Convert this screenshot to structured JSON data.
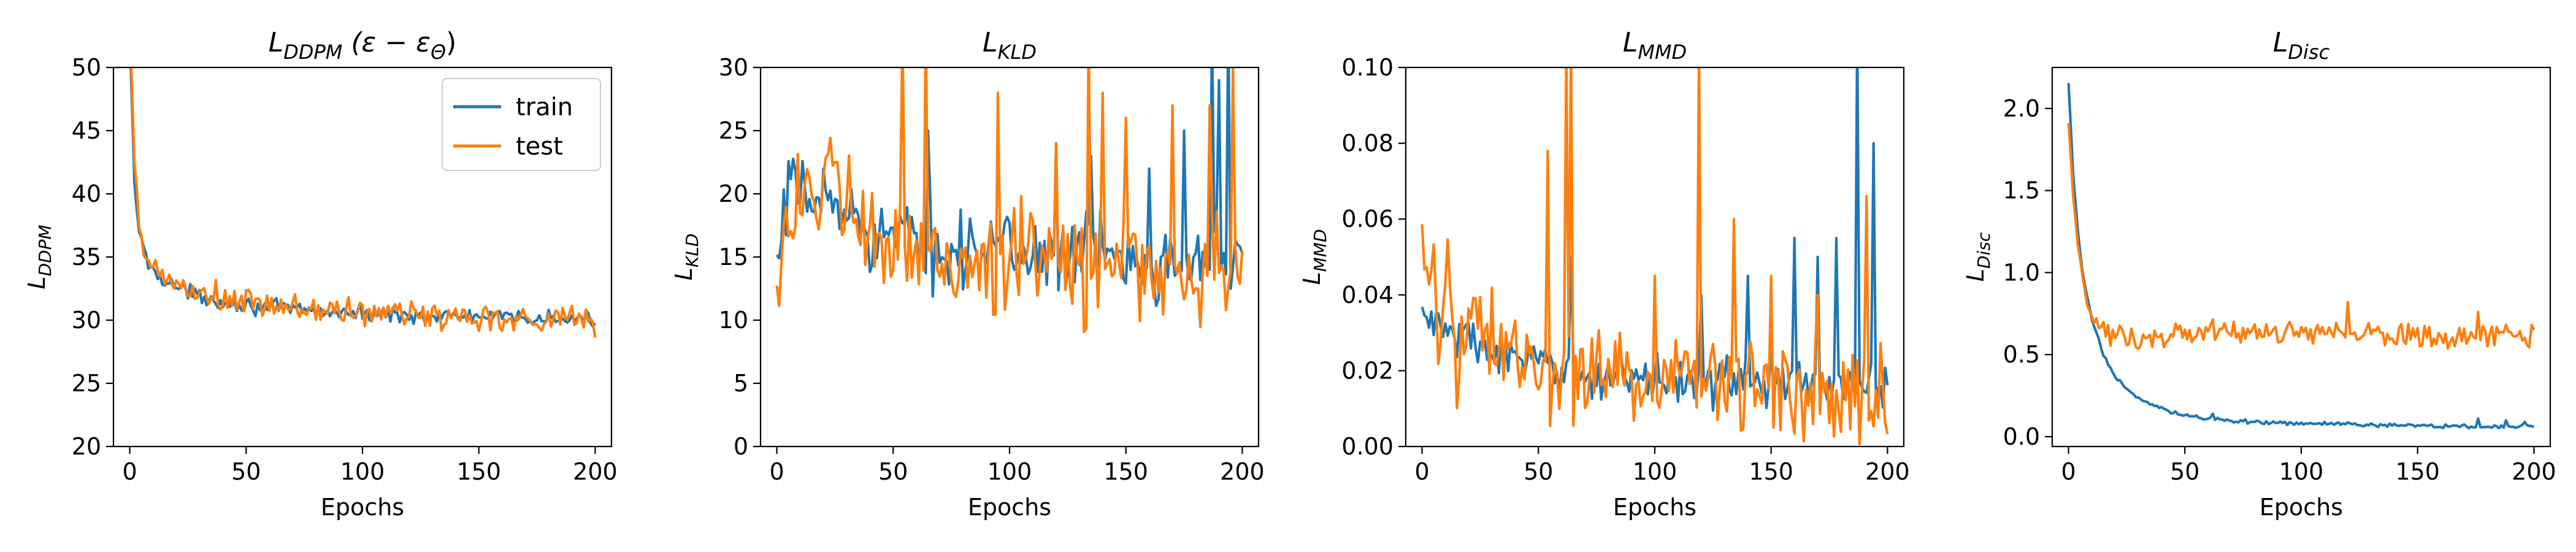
{
  "chart_data": [
    {
      "type": "line",
      "title": "L_DDPM (ε − ε_Θ)",
      "title_main": "L",
      "title_sub": "DDPM",
      "title_tail": " (ε − ε",
      "title_tail_sub": "Θ",
      "title_close": ")",
      "xlabel": "Epochs",
      "ylabel": "L",
      "ylabel_sub": "DDPM",
      "xlim": [
        -7,
        207
      ],
      "ylim": [
        20,
        50
      ],
      "xticks": [
        0,
        50,
        100,
        150,
        200
      ],
      "yticks": [
        20,
        25,
        30,
        35,
        40,
        45,
        50
      ],
      "legend": {
        "position": "top-right",
        "entries": [
          "train",
          "test"
        ]
      },
      "series": [
        {
          "name": "train",
          "color": "#1f77b4",
          "points": [
            [
              0,
              52
            ],
            [
              2,
              41
            ],
            [
              4,
              37
            ],
            [
              6,
              35.5
            ],
            [
              8,
              34.5
            ],
            [
              10,
              34
            ],
            [
              15,
              33.2
            ],
            [
              20,
              32.6
            ],
            [
              25,
              32.2
            ],
            [
              30,
              31.9
            ],
            [
              40,
              31.5
            ],
            [
              50,
              31.2
            ],
            [
              60,
              31
            ],
            [
              80,
              30.7
            ],
            [
              100,
              30.5
            ],
            [
              120,
              30.4
            ],
            [
              140,
              30.3
            ],
            [
              160,
              30.2
            ],
            [
              180,
              30.1
            ],
            [
              200,
              30
            ]
          ],
          "noise": 0.3
        },
        {
          "name": "test",
          "color": "#ff7f0e",
          "points": [
            [
              0,
              53
            ],
            [
              2,
              42
            ],
            [
              4,
              37.5
            ],
            [
              6,
              35.5
            ],
            [
              8,
              34.5
            ],
            [
              10,
              34
            ],
            [
              15,
              33.4
            ],
            [
              20,
              32.8
            ],
            [
              25,
              32.3
            ],
            [
              30,
              32
            ],
            [
              40,
              31.6
            ],
            [
              50,
              31.3
            ],
            [
              60,
              31.1
            ],
            [
              80,
              30.8
            ],
            [
              100,
              30.6
            ],
            [
              120,
              30.5
            ],
            [
              140,
              30.3
            ],
            [
              160,
              30.2
            ],
            [
              180,
              30.1
            ],
            [
              200,
              30.1
            ]
          ],
          "noise": 0.6
        }
      ]
    },
    {
      "type": "line",
      "title": "L_KLD",
      "title_main": "L",
      "title_sub": "KLD",
      "xlabel": "Epochs",
      "ylabel": "L",
      "ylabel_sub": "KLD",
      "xlim": [
        -7,
        207
      ],
      "ylim": [
        0,
        30
      ],
      "xticks": [
        0,
        50,
        100,
        150,
        200
      ],
      "yticks": [
        0,
        5,
        10,
        15,
        20,
        25,
        30
      ],
      "series": [
        {
          "name": "train",
          "color": "#1f77b4",
          "points": [
            [
              0,
              12.5
            ],
            [
              3,
              18.5
            ],
            [
              5,
              19.5
            ],
            [
              10,
              20
            ],
            [
              20,
              19.5
            ],
            [
              30,
              18.5
            ],
            [
              40,
              17.5
            ],
            [
              50,
              16.5
            ],
            [
              60,
              16
            ],
            [
              80,
              15.8
            ],
            [
              100,
              15.5
            ],
            [
              120,
              15.3
            ],
            [
              140,
              15.2
            ],
            [
              160,
              15
            ],
            [
              180,
              15
            ],
            [
              200,
              15
            ]
          ],
          "noise": 1.5,
          "spikes": [
            [
              65,
              25
            ],
            [
              120,
              24
            ],
            [
              135,
              23
            ],
            [
              160,
              22
            ],
            [
              175,
              25
            ],
            [
              187,
              33
            ],
            [
              190,
              29
            ],
            [
              194,
              34
            ]
          ]
        },
        {
          "name": "test",
          "color": "#ff7f0e",
          "points": [
            [
              0,
              13
            ],
            [
              3,
              19
            ],
            [
              5,
              18
            ],
            [
              10,
              20
            ],
            [
              20,
              20.5
            ],
            [
              30,
              18.5
            ],
            [
              40,
              16.5
            ],
            [
              50,
              15
            ],
            [
              60,
              15
            ],
            [
              80,
              14.8
            ],
            [
              100,
              14.5
            ],
            [
              120,
              14.5
            ],
            [
              140,
              14.3
            ],
            [
              160,
              14.2
            ],
            [
              180,
              14
            ],
            [
              200,
              13
            ]
          ],
          "noise": 2.2,
          "spikes": [
            [
              54,
              33
            ],
            [
              64,
              33
            ],
            [
              95,
              28
            ],
            [
              120,
              24
            ],
            [
              134,
              33
            ],
            [
              140,
              28
            ],
            [
              150,
              26
            ],
            [
              170,
              27
            ],
            [
              186,
              27
            ],
            [
              196,
              30
            ]
          ]
        }
      ]
    },
    {
      "type": "line",
      "title": "L_MMD",
      "title_main": "L",
      "title_sub": "MMD",
      "xlabel": "Epochs",
      "ylabel": "L",
      "ylabel_sub": "MMD",
      "xlim": [
        -7,
        207
      ],
      "ylim": [
        0,
        0.1
      ],
      "xticks": [
        0,
        50,
        100,
        150,
        200
      ],
      "yticks": [
        0.0,
        0.02,
        0.04,
        0.06,
        0.08,
        0.1
      ],
      "ytick_decimals": 2,
      "series": [
        {
          "name": "train",
          "color": "#1f77b4",
          "points": [
            [
              0,
              0.036
            ],
            [
              5,
              0.032
            ],
            [
              10,
              0.031
            ],
            [
              20,
              0.028
            ],
            [
              30,
              0.025
            ],
            [
              40,
              0.023
            ],
            [
              50,
              0.021
            ],
            [
              60,
              0.02
            ],
            [
              80,
              0.019
            ],
            [
              100,
              0.018
            ],
            [
              120,
              0.018
            ],
            [
              140,
              0.017
            ],
            [
              160,
              0.017
            ],
            [
              180,
              0.016
            ],
            [
              200,
              0.016
            ]
          ],
          "noise": 0.003,
          "spikes": [
            [
              64,
              0.05
            ],
            [
              120,
              0.04
            ],
            [
              140,
              0.045
            ],
            [
              160,
              0.055
            ],
            [
              170,
              0.05
            ],
            [
              178,
              0.055
            ],
            [
              187,
              0.11
            ],
            [
              194,
              0.08
            ]
          ]
        },
        {
          "name": "test",
          "color": "#ff7f0e",
          "points": [
            [
              0,
              0.056
            ],
            [
              3,
              0.033
            ],
            [
              5,
              0.05
            ],
            [
              8,
              0.028
            ],
            [
              10,
              0.055
            ],
            [
              15,
              0.02
            ],
            [
              20,
              0.035
            ],
            [
              30,
              0.025
            ],
            [
              40,
              0.022
            ],
            [
              50,
              0.02
            ],
            [
              60,
              0.02
            ],
            [
              80,
              0.019
            ],
            [
              100,
              0.018
            ],
            [
              120,
              0.018
            ],
            [
              140,
              0.017
            ],
            [
              160,
              0.017
            ],
            [
              180,
              0.016
            ],
            [
              200,
              0.013
            ]
          ],
          "noise": 0.007,
          "spikes": [
            [
              54,
              0.078
            ],
            [
              62,
              0.105
            ],
            [
              64,
              0.105
            ],
            [
              85,
              0.03
            ],
            [
              100,
              0.045
            ],
            [
              119,
              0.105
            ],
            [
              134,
              0.06
            ],
            [
              150,
              0.045
            ],
            [
              170,
              0.04
            ],
            [
              191,
              0.066
            ]
          ]
        }
      ]
    },
    {
      "type": "line",
      "title": "L_Disc",
      "title_main": "L",
      "title_sub": "Disc",
      "xlabel": "Epochs",
      "ylabel": "L",
      "ylabel_sub": "Disc",
      "xlim": [
        -7,
        207
      ],
      "ylim": [
        -0.06,
        2.25
      ],
      "xticks": [
        0,
        50,
        100,
        150,
        200
      ],
      "yticks": [
        0.0,
        0.5,
        1.0,
        1.5,
        2.0
      ],
      "ytick_decimals": 1,
      "series": [
        {
          "name": "train",
          "color": "#1f77b4",
          "points": [
            [
              0,
              2.15
            ],
            [
              2,
              1.6
            ],
            [
              4,
              1.25
            ],
            [
              6,
              1.0
            ],
            [
              8,
              0.85
            ],
            [
              10,
              0.72
            ],
            [
              15,
              0.5
            ],
            [
              20,
              0.37
            ],
            [
              25,
              0.29
            ],
            [
              30,
              0.23
            ],
            [
              40,
              0.17
            ],
            [
              50,
              0.13
            ],
            [
              60,
              0.11
            ],
            [
              70,
              0.1
            ],
            [
              80,
              0.09
            ],
            [
              100,
              0.08
            ],
            [
              120,
              0.075
            ],
            [
              140,
              0.07
            ],
            [
              160,
              0.065
            ],
            [
              180,
              0.06
            ],
            [
              200,
              0.06
            ]
          ],
          "noise": 0.006,
          "spikes": [
            [
              62,
              0.14
            ],
            [
              176,
              0.11
            ],
            [
              188,
              0.1
            ],
            [
              196,
              0.09
            ]
          ]
        },
        {
          "name": "test",
          "color": "#ff7f0e",
          "points": [
            [
              0,
              1.95
            ],
            [
              2,
              1.5
            ],
            [
              4,
              1.2
            ],
            [
              6,
              1.0
            ],
            [
              8,
              0.85
            ],
            [
              10,
              0.76
            ],
            [
              15,
              0.65
            ],
            [
              20,
              0.6
            ],
            [
              25,
              0.58
            ],
            [
              30,
              0.59
            ],
            [
              40,
              0.6
            ],
            [
              60,
              0.63
            ],
            [
              80,
              0.63
            ],
            [
              100,
              0.63
            ],
            [
              120,
              0.63
            ],
            [
              140,
              0.62
            ],
            [
              160,
              0.62
            ],
            [
              180,
              0.62
            ],
            [
              200,
              0.6
            ]
          ],
          "noise": 0.035,
          "spikes": [
            [
              120,
              0.82
            ],
            [
              176,
              0.76
            ]
          ]
        }
      ]
    }
  ]
}
